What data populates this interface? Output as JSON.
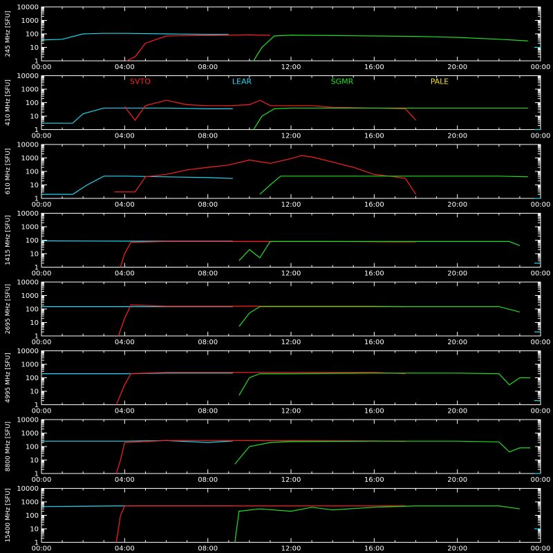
{
  "chart_data": {
    "type": "line",
    "y_scale": "log",
    "ylim": [
      1,
      10000
    ],
    "y_ticks": [
      "1",
      "10",
      "100",
      "1000",
      "10000"
    ],
    "x_range": [
      "00:00",
      "24:00"
    ],
    "x_ticks": [
      "00:00",
      "04:00",
      "08:00",
      "12:00",
      "16:00",
      "20:00",
      "00:00"
    ],
    "grid": false,
    "legend_position": "second-panel-top",
    "stations": [
      {
        "name": "SVTO",
        "color": "#ff2020"
      },
      {
        "name": "LEAR",
        "color": "#20d8f0"
      },
      {
        "name": "SGMR",
        "color": "#20e020"
      },
      {
        "name": "PALE",
        "color": "#f0e030"
      }
    ],
    "panels": [
      {
        "ylabel": "245 MHz [SFU]",
        "series": [
          {
            "station": "LEAR",
            "x": [
              0.0,
              1.0,
              2.0,
              3.0,
              4.0,
              6.0,
              8.0,
              9.0
            ],
            "y": [
              35,
              40,
              100,
              110,
              110,
              100,
              90,
              90
            ]
          },
          {
            "station": "SVTO",
            "x": [
              4.1,
              4.5,
              5.0,
              6.0,
              9.0,
              10.0,
              10.5,
              11.0
            ],
            "y": [
              1,
              2,
              20,
              70,
              80,
              85,
              80,
              80
            ]
          },
          {
            "station": "SGMR",
            "x": [
              10.2,
              10.6,
              11.2,
              12.0,
              14.0,
              16.0,
              18.0,
              20.0,
              22.0,
              23.4
            ],
            "y": [
              1,
              10,
              70,
              80,
              75,
              70,
              65,
              55,
              40,
              30
            ]
          },
          {
            "station": "LEAR",
            "x": [
              23.7,
              24.0
            ],
            "y": [
              10,
              10
            ]
          }
        ]
      },
      {
        "ylabel": "410 MHz [SFU]",
        "series": [
          {
            "station": "LEAR",
            "x": [
              0.0,
              1.5,
              2.0,
              3.0,
              4.0,
              6.0,
              8.0,
              9.2
            ],
            "y": [
              3,
              3,
              15,
              40,
              40,
              40,
              35,
              35
            ]
          },
          {
            "station": "SVTO",
            "x": [
              4.0,
              4.5,
              5.0,
              6.0,
              7.0,
              8.0,
              9.0,
              10.0,
              10.5,
              11.0,
              13.0,
              14.0,
              16.0,
              17.5,
              18.0
            ],
            "y": [
              50,
              5,
              60,
              150,
              70,
              60,
              60,
              70,
              150,
              60,
              60,
              45,
              40,
              35,
              5
            ]
          },
          {
            "station": "SGMR",
            "x": [
              10.2,
              10.6,
              11.2,
              12.0,
              16.0,
              20.0,
              23.4
            ],
            "y": [
              1,
              10,
              35,
              40,
              40,
              40,
              40
            ]
          },
          {
            "station": "LEAR",
            "x": [
              23.7,
              24.0
            ],
            "y": [
              1,
              1
            ]
          }
        ]
      },
      {
        "ylabel": "610 MHz [SFU]",
        "series": [
          {
            "station": "LEAR",
            "x": [
              0.0,
              1.5,
              2.2,
              3.0,
              4.0,
              6.0,
              8.0,
              9.2
            ],
            "y": [
              2,
              2,
              10,
              45,
              45,
              40,
              35,
              30
            ]
          },
          {
            "station": "SVTO",
            "x": [
              3.5,
              4.5,
              5.0,
              6.0,
              7.0,
              8.0,
              9.0,
              10.0,
              11.0,
              12.0,
              12.5,
              13.0,
              14.0,
              15.0,
              16.0,
              17.0,
              17.5,
              18.0
            ],
            "y": [
              3,
              3,
              40,
              60,
              130,
              200,
              300,
              700,
              400,
              900,
              1500,
              1200,
              500,
              200,
              60,
              40,
              30,
              2
            ]
          },
          {
            "station": "SGMR",
            "x": [
              10.5,
              11.0,
              11.5,
              16.0,
              18.0,
              22.0,
              23.4
            ],
            "y": [
              2,
              10,
              45,
              45,
              45,
              45,
              40
            ]
          },
          {
            "station": "LEAR",
            "x": [
              23.7,
              24.0
            ],
            "y": [
              1,
              1
            ]
          }
        ]
      },
      {
        "ylabel": "1415 MHz [SFU]",
        "series": [
          {
            "station": "LEAR",
            "x": [
              0.0,
              4.0,
              6.0,
              8.0,
              9.2
            ],
            "y": [
              90,
              85,
              85,
              85,
              85
            ]
          },
          {
            "station": "SVTO",
            "x": [
              3.8,
              4.0,
              4.3,
              6.0,
              9.0,
              12.0,
              14.0,
              17.0,
              18.0
            ],
            "y": [
              1,
              10,
              70,
              80,
              80,
              80,
              80,
              75,
              75
            ]
          },
          {
            "station": "SGMR",
            "x": [
              9.5,
              10.0,
              10.5,
              11.0,
              12.0,
              16.0,
              20.0,
              22.5,
              23.0
            ],
            "y": [
              3,
              20,
              5,
              80,
              80,
              80,
              80,
              80,
              40
            ]
          },
          {
            "station": "LEAR",
            "x": [
              23.7,
              24.0
            ],
            "y": [
              2,
              2
            ]
          }
        ]
      },
      {
        "ylabel": "2695 MHz [SFU]",
        "series": [
          {
            "station": "LEAR",
            "x": [
              0.0,
              4.0,
              6.0,
              8.0,
              9.2
            ],
            "y": [
              150,
              150,
              150,
              150,
              150
            ]
          },
          {
            "station": "SVTO",
            "x": [
              3.7,
              4.0,
              4.3,
              6.0,
              9.0,
              12.0,
              16.0,
              17.5
            ],
            "y": [
              1,
              20,
              200,
              160,
              160,
              160,
              160,
              150
            ]
          },
          {
            "station": "SGMR",
            "x": [
              9.5,
              10.0,
              10.5,
              12.0,
              16.0,
              20.0,
              22.0,
              23.0
            ],
            "y": [
              5,
              50,
              150,
              150,
              150,
              150,
              150,
              60
            ]
          },
          {
            "station": "LEAR",
            "x": [
              23.7,
              24.0
            ],
            "y": [
              2,
              2
            ]
          }
        ]
      },
      {
        "ylabel": "4995 MHz [SFU]",
        "series": [
          {
            "station": "LEAR",
            "x": [
              0.0,
              4.0,
              6.0,
              8.0,
              9.2
            ],
            "y": [
              200,
              200,
              220,
              220,
              220
            ]
          },
          {
            "station": "SVTO",
            "x": [
              3.6,
              4.0,
              4.3,
              6.0,
              9.0,
              12.0,
              16.0,
              17.5
            ],
            "y": [
              1,
              30,
              200,
              250,
              250,
              250,
              250,
              200
            ]
          },
          {
            "station": "SGMR",
            "x": [
              9.5,
              10.0,
              10.5,
              12.0,
              16.0,
              20.0,
              22.0,
              22.5,
              23.0,
              23.5
            ],
            "y": [
              5,
              100,
              200,
              200,
              220,
              220,
              200,
              30,
              100,
              100
            ]
          },
          {
            "station": "LEAR",
            "x": [
              23.7,
              24.0
            ],
            "y": [
              2,
              2
            ]
          }
        ]
      },
      {
        "ylabel": "8800 MHz [SFU]",
        "series": [
          {
            "station": "LEAR",
            "x": [
              0.0,
              4.0,
              6.0,
              8.0,
              9.2
            ],
            "y": [
              250,
              250,
              280,
              200,
              260
            ]
          },
          {
            "station": "SVTO",
            "x": [
              3.6,
              3.8,
              4.0,
              6.0,
              9.0,
              12.0,
              16.0,
              17.5
            ],
            "y": [
              1,
              10,
              200,
              280,
              280,
              270,
              260,
              240
            ]
          },
          {
            "station": "SGMR",
            "x": [
              9.3,
              10.0,
              11.0,
              12.0,
              16.0,
              20.0,
              22.0,
              22.5,
              23.0,
              23.5
            ],
            "y": [
              5,
              100,
              200,
              230,
              250,
              250,
              220,
              40,
              80,
              80
            ]
          },
          {
            "station": "LEAR",
            "x": [
              23.7,
              24.0
            ],
            "y": [
              1,
              1
            ]
          }
        ]
      },
      {
        "ylabel": "15400 MHz [SFU]",
        "series": [
          {
            "station": "LEAR",
            "x": [
              0.0,
              3.5,
              4.0,
              6.0,
              8.0,
              9.2
            ],
            "y": [
              450,
              500,
              500,
              500,
              500,
              500
            ]
          },
          {
            "station": "SVTO",
            "x": [
              3.6,
              3.8,
              4.0,
              6.0,
              9.0,
              12.0,
              16.0,
              17.5
            ],
            "y": [
              1,
              100,
              500,
              500,
              500,
              500,
              500,
              500
            ]
          },
          {
            "station": "SGMR",
            "x": [
              9.3,
              9.5,
              10.5,
              12.0,
              13.0,
              14.0,
              16.0,
              18.0,
              22.0,
              23.0
            ],
            "y": [
              1,
              200,
              300,
              200,
              400,
              250,
              400,
              500,
              500,
              300
            ]
          },
          {
            "station": "LEAR",
            "x": [
              23.7,
              24.0
            ],
            "y": [
              10,
              10
            ]
          }
        ]
      }
    ]
  }
}
